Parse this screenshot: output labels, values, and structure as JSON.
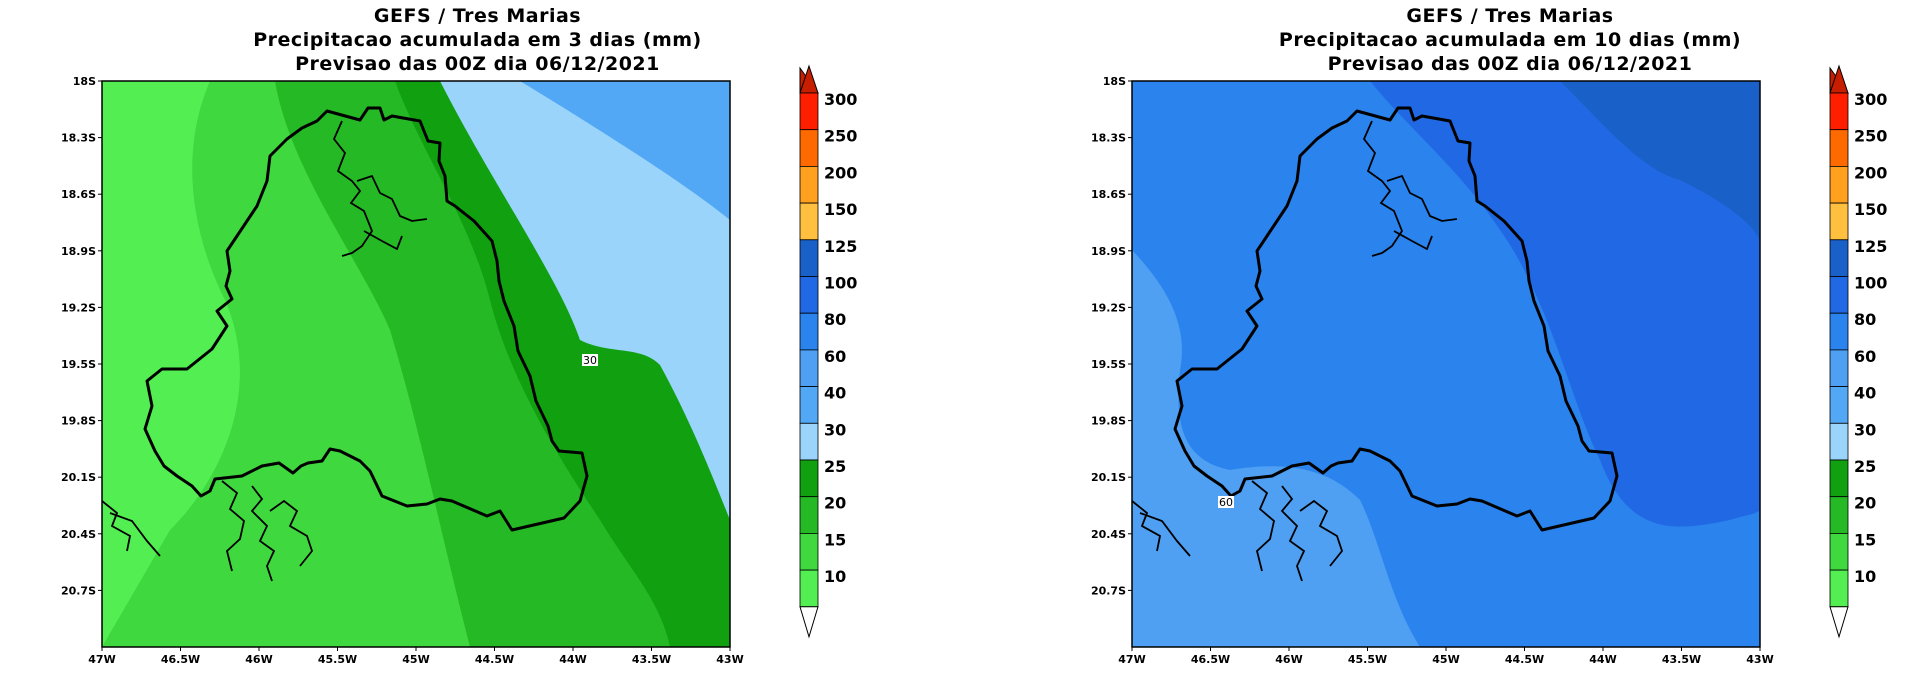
{
  "panels": [
    {
      "title_lines": [
        "GEFS / Tres Marias",
        "Precipitacao acumulada em 3 dias (mm)",
        "Previsao das 00Z dia 06/12/2021"
      ],
      "fill_colors": [
        "#52ee52",
        "#3fd83f",
        "#25ba25",
        "#10a010",
        "#9ad4fa"
      ],
      "extra_color": "#52a8f4",
      "contour_label": "30"
    },
    {
      "title_lines": [
        "GEFS / Tres Marias",
        "Precipitacao acumulada em 10 dias (mm)",
        "Previsao das 00Z dia 06/12/2021"
      ],
      "fill_colors": [
        "#4f9ff2",
        "#2b84ee",
        "#2169e4",
        "#1a60c9"
      ],
      "contour_label": "60"
    }
  ],
  "axes": {
    "lat_ticks": [
      "18S",
      "18.3S",
      "18.6S",
      "18.9S",
      "19.2S",
      "19.5S",
      "19.8S",
      "20.1S",
      "20.4S",
      "20.7S"
    ],
    "lon_ticks": [
      "47W",
      "46.5W",
      "46W",
      "45.5W",
      "45W",
      "44.5W",
      "44W",
      "43.5W",
      "43W"
    ]
  },
  "colorbar": {
    "labels": [
      "300",
      "250",
      "200",
      "150",
      "125",
      "100",
      "80",
      "60",
      "40",
      "30",
      "25",
      "20",
      "15",
      "10"
    ],
    "colors": [
      "#ff1e00",
      "#ff6a00",
      "#ffa01e",
      "#ffc040",
      "#1a60c9",
      "#2169e4",
      "#2b84ee",
      "#4f9ff2",
      "#52a8f4",
      "#9ad4fa",
      "#10a010",
      "#25ba25",
      "#3fd83f",
      "#52ee52"
    ],
    "top_arrow_color": "#c81e00"
  }
}
